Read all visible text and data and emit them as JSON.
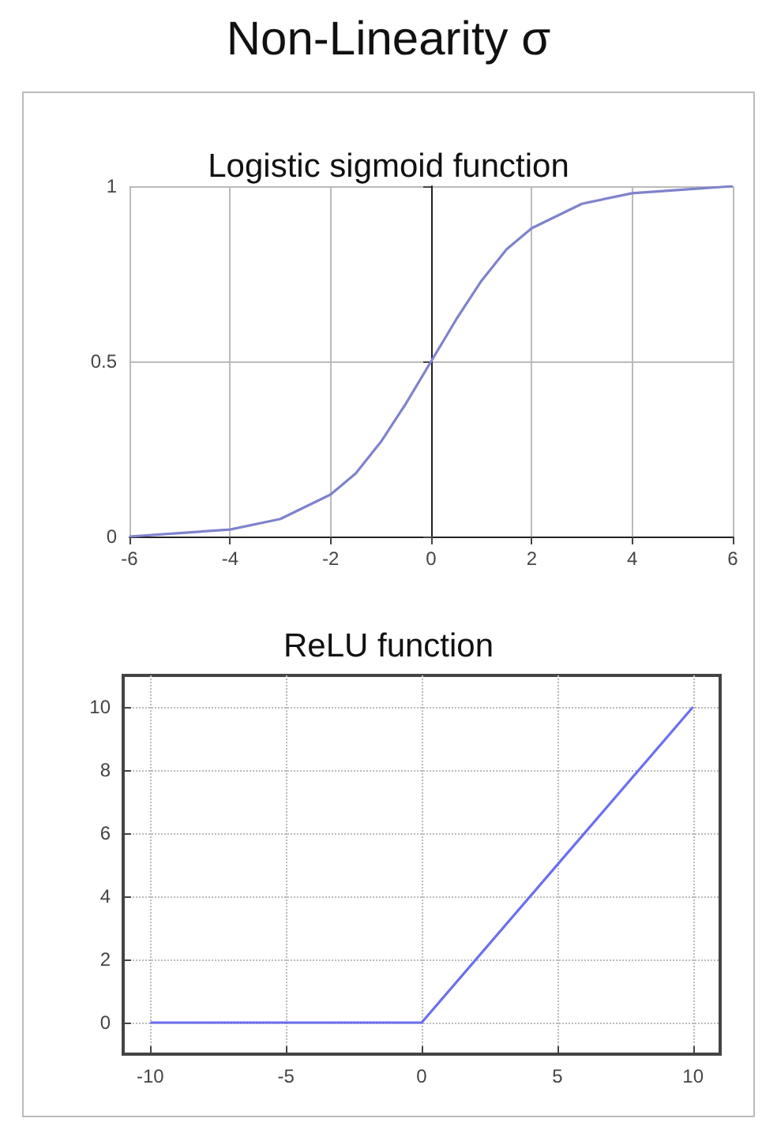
{
  "chart_data": [
    {
      "type": "line",
      "title": "Logistic sigmoid function",
      "annotations": [
        "Non-Linearity σ"
      ],
      "x": [
        -6,
        -5,
        -4,
        -3,
        -2,
        -1.5,
        -1,
        -0.5,
        0,
        0.5,
        1,
        1.5,
        2,
        3,
        4,
        5,
        6
      ],
      "series": [
        {
          "color": "#7f83cc",
          "values": [
            0.0,
            0.01,
            0.02,
            0.05,
            0.12,
            0.18,
            0.27,
            0.38,
            0.5,
            0.62,
            0.73,
            0.82,
            0.88,
            0.95,
            0.98,
            0.99,
            1.0
          ]
        }
      ],
      "xlim": [
        -6,
        6
      ],
      "xticks": [
        -6,
        -4,
        -2,
        0,
        2,
        4,
        6
      ],
      "ylim": [
        0,
        1
      ],
      "yticks": [
        0,
        0.5,
        1
      ],
      "grid": true,
      "marker": "none"
    },
    {
      "type": "line",
      "title": "ReLU function",
      "x": [
        -10,
        0,
        10
      ],
      "series": [
        {
          "color": "#6a6ff0",
          "values": [
            0,
            0,
            10
          ]
        }
      ],
      "xlim": [
        -11,
        11
      ],
      "xticks": [
        -10,
        -5,
        0,
        5,
        10
      ],
      "ylim": [
        -1,
        11
      ],
      "yticks": [
        0,
        2,
        4,
        6,
        8,
        10
      ],
      "grid": true,
      "marker": "none"
    }
  ]
}
